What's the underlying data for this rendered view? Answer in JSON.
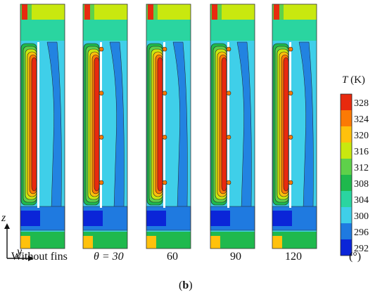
{
  "figure": {
    "panel_label_prefix": "(",
    "panel_label": "b",
    "panel_label_suffix": ")",
    "case_labels": [
      "Without fins",
      "θ = 30",
      "60",
      "90",
      "120"
    ],
    "unit_label": "(°)",
    "axes": {
      "z": "z",
      "y": "y"
    },
    "legend": {
      "symbol": "T",
      "unit": "(K)",
      "ticks": [
        "328",
        "324",
        "320",
        "316",
        "312",
        "308",
        "304",
        "300",
        "296",
        "292"
      ],
      "colors": [
        "#e82a0e",
        "#fb7a05",
        "#ffc10c",
        "#c9e80f",
        "#5ed14a",
        "#1fb94d",
        "#2ad5a0",
        "#3fcfe9",
        "#1f7ae0",
        "#0b25d8"
      ]
    },
    "panels": [
      {
        "id": "without-fins",
        "fins": []
      },
      {
        "id": "theta-30",
        "fins": [
          0.0,
          0.33,
          0.66,
          1.0
        ]
      },
      {
        "id": "theta-60",
        "fins": [
          0.0,
          0.33,
          0.66,
          1.0
        ]
      },
      {
        "id": "theta-90",
        "fins": [
          0.0,
          0.33,
          0.66,
          1.0
        ]
      },
      {
        "id": "theta-120",
        "fins": [
          0.0,
          0.33,
          0.66,
          1.0
        ]
      }
    ]
  }
}
